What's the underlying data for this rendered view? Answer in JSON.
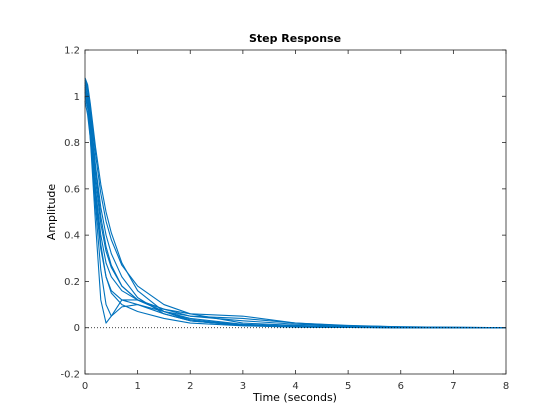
{
  "chart_data": {
    "type": "line",
    "title": "Step Response",
    "xlabel": "Time (seconds)",
    "ylabel": "Amplitude",
    "xlim": [
      0,
      8
    ],
    "ylim": [
      -0.2,
      1.2
    ],
    "xticks": [
      "0",
      "1",
      "2",
      "3",
      "4",
      "5",
      "6",
      "7",
      "8"
    ],
    "yticks": [
      "-0.2",
      "0",
      "0.2",
      "0.4",
      "0.6",
      "0.8",
      "1",
      "1.2"
    ],
    "grid": false,
    "reference_line": {
      "y": 0,
      "style": "dotted"
    },
    "series_color": "#0072BD",
    "series": [
      {
        "x": [
          0,
          0.05,
          0.1,
          0.2,
          0.3,
          0.4,
          0.5,
          0.7,
          1.0,
          1.5,
          2.0,
          3.0,
          4.0,
          5.0,
          6.0,
          7.0,
          8.0
        ],
        "values": [
          1.08,
          1.05,
          0.97,
          0.78,
          0.62,
          0.5,
          0.41,
          0.28,
          0.16,
          0.07,
          0.03,
          0.01,
          0.005,
          0.002,
          0.001,
          0.0,
          0.0
        ]
      },
      {
        "x": [
          0,
          0.05,
          0.1,
          0.2,
          0.3,
          0.4,
          0.5,
          0.7,
          1.0,
          1.5,
          2.0,
          3.0,
          4.0,
          5.0,
          6.0,
          7.0,
          8.0
        ],
        "values": [
          1.06,
          1.03,
          0.94,
          0.7,
          0.52,
          0.4,
          0.32,
          0.22,
          0.13,
          0.06,
          0.03,
          0.01,
          0.003,
          0.001,
          0.0,
          0.0,
          0.0
        ]
      },
      {
        "x": [
          0,
          0.05,
          0.1,
          0.2,
          0.3,
          0.4,
          0.5,
          0.7,
          1.0,
          1.5,
          2.0,
          3.0,
          4.0,
          5.0,
          6.0,
          7.0,
          8.0
        ],
        "values": [
          1.05,
          1.0,
          0.88,
          0.58,
          0.36,
          0.22,
          0.15,
          0.1,
          0.07,
          0.04,
          0.02,
          0.008,
          0.003,
          0.001,
          0.0,
          0.0,
          0.0
        ]
      },
      {
        "x": [
          0,
          0.05,
          0.1,
          0.2,
          0.3,
          0.4,
          0.5,
          0.7,
          1.0,
          1.5,
          2.0,
          3.0,
          4.0,
          5.0,
          6.0,
          7.0,
          8.0
        ],
        "values": [
          1.04,
          0.98,
          0.85,
          0.52,
          0.25,
          0.1,
          0.05,
          0.09,
          0.1,
          0.06,
          0.03,
          0.01,
          0.004,
          0.001,
          0.0,
          0.0,
          0.0
        ]
      },
      {
        "x": [
          0,
          0.05,
          0.1,
          0.2,
          0.3,
          0.4,
          0.5,
          0.7,
          1.0,
          1.5,
          2.0,
          3.0,
          4.0,
          5.0,
          6.0,
          7.0,
          8.0
        ],
        "values": [
          1.02,
          0.96,
          0.82,
          0.45,
          0.12,
          0.02,
          0.05,
          0.12,
          0.12,
          0.07,
          0.035,
          0.012,
          0.005,
          0.002,
          0.0,
          0.0,
          0.0
        ]
      },
      {
        "x": [
          0,
          0.05,
          0.1,
          0.2,
          0.3,
          0.4,
          0.5,
          0.7,
          1.0,
          1.5,
          2.0,
          3.0,
          4.0,
          5.0,
          6.0,
          7.0,
          8.0
        ],
        "values": [
          1.07,
          1.04,
          0.96,
          0.75,
          0.58,
          0.46,
          0.38,
          0.27,
          0.18,
          0.1,
          0.06,
          0.02,
          0.01,
          0.005,
          0.002,
          0.0,
          0.0
        ]
      },
      {
        "x": [
          0,
          0.05,
          0.1,
          0.2,
          0.3,
          0.4,
          0.5,
          0.7,
          1.0,
          1.5,
          2.0,
          3.0,
          4.0,
          5.0,
          6.0,
          7.0,
          8.0
        ],
        "values": [
          1.03,
          0.99,
          0.9,
          0.64,
          0.45,
          0.33,
          0.26,
          0.18,
          0.12,
          0.07,
          0.04,
          0.015,
          0.006,
          0.002,
          0.0,
          0.0,
          0.0
        ]
      },
      {
        "x": [
          0,
          0.05,
          0.1,
          0.2,
          0.3,
          0.4,
          0.5,
          0.7,
          1.0,
          1.5,
          2.0,
          3.0,
          4.0,
          5.0,
          6.0,
          7.0,
          8.0
        ],
        "values": [
          1.0,
          0.95,
          0.86,
          0.6,
          0.4,
          0.28,
          0.22,
          0.16,
          0.12,
          0.08,
          0.05,
          0.03,
          0.015,
          0.008,
          0.004,
          0.002,
          0.0
        ]
      },
      {
        "x": [
          0,
          0.05,
          0.1,
          0.2,
          0.3,
          0.4,
          0.5,
          0.7,
          1.0,
          1.5,
          2.0,
          3.0,
          4.0,
          5.0,
          6.0,
          7.0,
          8.0
        ],
        "values": [
          1.06,
          1.02,
          0.93,
          0.68,
          0.48,
          0.35,
          0.27,
          0.18,
          0.12,
          0.08,
          0.06,
          0.05,
          0.02,
          0.008,
          0.003,
          0.001,
          0.0
        ]
      },
      {
        "x": [
          0,
          0.05,
          0.1,
          0.2,
          0.3,
          0.4,
          0.5,
          0.7,
          1.0,
          1.5,
          2.0,
          3.0,
          4.0,
          5.0,
          6.0,
          7.0,
          8.0
        ],
        "values": [
          0.98,
          0.92,
          0.82,
          0.55,
          0.34,
          0.22,
          0.16,
          0.12,
          0.1,
          0.07,
          0.05,
          0.04,
          0.02,
          0.01,
          0.004,
          0.002,
          0.0
        ]
      }
    ]
  }
}
